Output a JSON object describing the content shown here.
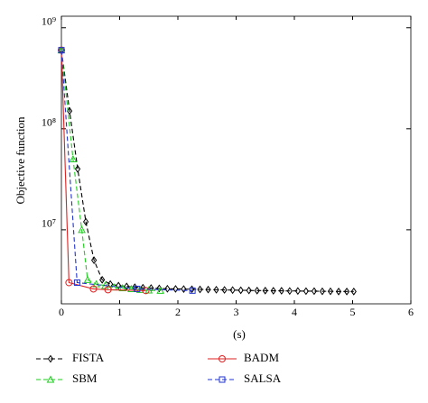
{
  "chart_data": {
    "type": "line",
    "xlabel": "(s)",
    "ylabel": "Objective function",
    "xlim": [
      0,
      6
    ],
    "xticks": [
      0,
      1,
      2,
      3,
      4,
      5,
      6
    ],
    "ylim": [
      1850000,
      1300000000
    ],
    "yscale": "log",
    "yticks": [
      {
        "value": 10000000,
        "label": "10⁷"
      },
      {
        "value": 100000000,
        "label": "10⁸"
      },
      {
        "value": 1000000000,
        "label": "10⁹"
      }
    ],
    "series": [
      {
        "name": "FISTA",
        "color": "#000000",
        "marker": "diamond",
        "dashed": true,
        "x": [
          0,
          0.14,
          0.28,
          0.42,
          0.56,
          0.7,
          0.84,
          0.98,
          1.12,
          1.26,
          1.4,
          1.54,
          1.68,
          1.82,
          1.96,
          2.1,
          2.24,
          2.38,
          2.52,
          2.66,
          2.8,
          2.94,
          3.08,
          3.22,
          3.36,
          3.5,
          3.64,
          3.78,
          3.92,
          4.06,
          4.2,
          4.34,
          4.48,
          4.62,
          4.76,
          4.9,
          5.02
        ],
        "values": [
          600000000,
          150000000,
          40000000,
          12000000,
          5000000,
          3200000,
          2900000,
          2800000,
          2750000,
          2700000,
          2670000,
          2650000,
          2630000,
          2610000,
          2600000,
          2590000,
          2580000,
          2570000,
          2560000,
          2550000,
          2540000,
          2530000,
          2520000,
          2510000,
          2500000,
          2500000,
          2490000,
          2490000,
          2480000,
          2480000,
          2470000,
          2470000,
          2460000,
          2460000,
          2450000,
          2450000,
          2450000
        ]
      },
      {
        "name": "SBM",
        "color": "#22cc22",
        "marker": "triangle",
        "dashed": true,
        "x": [
          0,
          0.2,
          0.35,
          0.45,
          0.6,
          0.75,
          0.9,
          1.05,
          1.2,
          1.35,
          1.5,
          1.7
        ],
        "values": [
          600000000,
          50000000,
          10000000,
          3200000,
          2900000,
          2800000,
          2700000,
          2650000,
          2600000,
          2550000,
          2520000,
          2500000
        ]
      },
      {
        "name": "BADM",
        "color": "#dd2222",
        "marker": "circle",
        "dashed": false,
        "x": [
          0,
          0.13,
          0.55,
          0.8,
          1.45
        ],
        "values": [
          600000000,
          3000000,
          2600000,
          2550000,
          2500000
        ]
      },
      {
        "name": "SALSA",
        "color": "#2233cc",
        "marker": "square",
        "dashed": true,
        "x": [
          0,
          0.27,
          1.3,
          2.25
        ],
        "values": [
          600000000,
          3000000,
          2600000,
          2500000
        ]
      }
    ]
  }
}
